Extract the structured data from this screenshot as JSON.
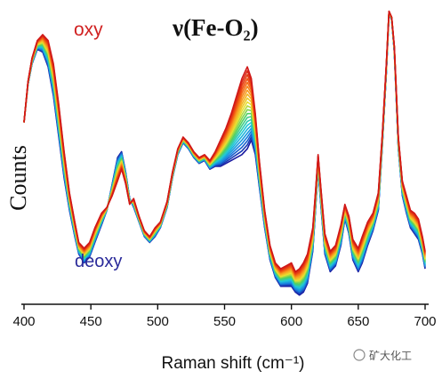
{
  "chart_data": {
    "type": "line",
    "title": "",
    "xlabel": "Raman shift (cm⁻¹)",
    "ylabel": "Counts",
    "xlim": [
      400,
      700
    ],
    "xticks": [
      400,
      450,
      500,
      550,
      600,
      650,
      700
    ],
    "y_ticks_shown": false,
    "ylim": [
      0,
      100
    ],
    "annotations": {
      "oxy": "oxy",
      "deoxy": "deoxy",
      "band": "ν(Fe-O₂)"
    },
    "colors": {
      "oxy": "#d01818",
      "deoxy": "#1a1aa0",
      "gradient": [
        "#d01818",
        "#f05010",
        "#f8a020",
        "#e8e030",
        "#50d060",
        "#20c8d8",
        "#1880e0",
        "#1a1aa0"
      ]
    },
    "series": [
      {
        "values": [
          [
            400,
            60
          ],
          [
            403,
            74
          ],
          [
            406,
            82
          ],
          [
            410,
            88
          ],
          [
            414,
            90
          ],
          [
            418,
            88
          ],
          [
            422,
            80
          ],
          [
            426,
            66
          ],
          [
            430,
            50
          ],
          [
            434,
            36
          ],
          [
            438,
            26
          ],
          [
            441,
            19
          ],
          [
            445,
            17
          ],
          [
            449,
            19
          ],
          [
            453,
            24
          ],
          [
            458,
            29
          ],
          [
            462,
            31
          ],
          [
            466,
            35
          ],
          [
            470,
            40
          ],
          [
            473,
            44
          ],
          [
            476,
            39
          ],
          [
            479,
            32
          ],
          [
            482,
            34
          ],
          [
            486,
            28
          ],
          [
            490,
            23
          ],
          [
            494,
            21
          ],
          [
            498,
            24
          ],
          [
            502,
            26
          ],
          [
            507,
            33
          ],
          [
            511,
            43
          ],
          [
            515,
            51
          ],
          [
            519,
            55
          ],
          [
            523,
            53
          ],
          [
            527,
            50
          ],
          [
            531,
            48
          ],
          [
            535,
            49
          ],
          [
            539,
            47
          ],
          [
            543,
            50
          ],
          [
            547,
            54
          ],
          [
            551,
            58
          ],
          [
            555,
            63
          ],
          [
            559,
            69
          ],
          [
            563,
            75
          ],
          [
            567,
            79
          ],
          [
            570,
            75
          ],
          [
            573,
            63
          ],
          [
            576,
            47
          ],
          [
            580,
            30
          ],
          [
            584,
            18
          ],
          [
            588,
            12
          ],
          [
            592,
            10
          ],
          [
            596,
            11
          ],
          [
            600,
            12
          ],
          [
            603,
            9
          ],
          [
            606,
            10
          ],
          [
            609,
            12
          ],
          [
            612,
            15
          ],
          [
            616,
            24
          ],
          [
            618,
            36
          ],
          [
            620,
            49
          ],
          [
            622,
            38
          ],
          [
            625,
            22
          ],
          [
            629,
            16
          ],
          [
            633,
            18
          ],
          [
            637,
            25
          ],
          [
            640,
            32
          ],
          [
            643,
            28
          ],
          [
            646,
            20
          ],
          [
            650,
            17
          ],
          [
            653,
            21
          ],
          [
            657,
            26
          ],
          [
            661,
            29
          ],
          [
            665,
            36
          ],
          [
            668,
            56
          ],
          [
            671,
            80
          ],
          [
            673,
            98
          ],
          [
            675,
            96
          ],
          [
            677,
            86
          ],
          [
            680,
            55
          ],
          [
            683,
            40
          ],
          [
            686,
            35
          ],
          [
            689,
            30
          ],
          [
            692,
            29
          ],
          [
            695,
            27
          ],
          [
            698,
            21
          ],
          [
            700,
            16
          ]
        ]
      },
      {
        "values": [
          [
            400,
            60
          ],
          [
            403,
            73
          ],
          [
            406,
            80
          ],
          [
            410,
            85
          ],
          [
            414,
            84
          ],
          [
            418,
            79
          ],
          [
            422,
            69
          ],
          [
            426,
            55
          ],
          [
            430,
            41
          ],
          [
            434,
            30
          ],
          [
            438,
            21
          ],
          [
            441,
            15
          ],
          [
            445,
            12
          ],
          [
            449,
            14
          ],
          [
            453,
            19
          ],
          [
            458,
            25
          ],
          [
            462,
            30
          ],
          [
            466,
            39
          ],
          [
            470,
            48
          ],
          [
            473,
            50
          ],
          [
            476,
            43
          ],
          [
            479,
            34
          ],
          [
            482,
            31
          ],
          [
            486,
            26
          ],
          [
            490,
            21
          ],
          [
            494,
            19
          ],
          [
            498,
            21
          ],
          [
            502,
            24
          ],
          [
            507,
            31
          ],
          [
            511,
            41
          ],
          [
            515,
            49
          ],
          [
            519,
            53
          ],
          [
            523,
            51
          ],
          [
            527,
            48
          ],
          [
            531,
            46
          ],
          [
            535,
            47
          ],
          [
            539,
            44
          ],
          [
            543,
            45
          ],
          [
            547,
            45
          ],
          [
            551,
            46
          ],
          [
            555,
            47
          ],
          [
            559,
            48
          ],
          [
            563,
            49
          ],
          [
            567,
            51
          ],
          [
            570,
            54
          ],
          [
            573,
            49
          ],
          [
            576,
            38
          ],
          [
            580,
            24
          ],
          [
            584,
            13
          ],
          [
            588,
            7
          ],
          [
            592,
            4
          ],
          [
            596,
            4
          ],
          [
            600,
            4
          ],
          [
            603,
            2
          ],
          [
            606,
            1
          ],
          [
            609,
            2
          ],
          [
            612,
            5
          ],
          [
            616,
            16
          ],
          [
            618,
            30
          ],
          [
            620,
            44
          ],
          [
            622,
            32
          ],
          [
            625,
            15
          ],
          [
            629,
            9
          ],
          [
            633,
            11
          ],
          [
            637,
            18
          ],
          [
            640,
            27
          ],
          [
            643,
            22
          ],
          [
            646,
            13
          ],
          [
            650,
            9
          ],
          [
            653,
            12
          ],
          [
            657,
            18
          ],
          [
            661,
            23
          ],
          [
            665,
            30
          ],
          [
            668,
            52
          ],
          [
            671,
            77
          ],
          [
            673,
            97
          ],
          [
            675,
            95
          ],
          [
            677,
            84
          ],
          [
            680,
            51
          ],
          [
            683,
            35
          ],
          [
            686,
            29
          ],
          [
            689,
            24
          ],
          [
            692,
            22
          ],
          [
            695,
            20
          ],
          [
            698,
            15
          ],
          [
            700,
            10
          ]
        ]
      }
    ]
  },
  "watermark": "矿大化工"
}
